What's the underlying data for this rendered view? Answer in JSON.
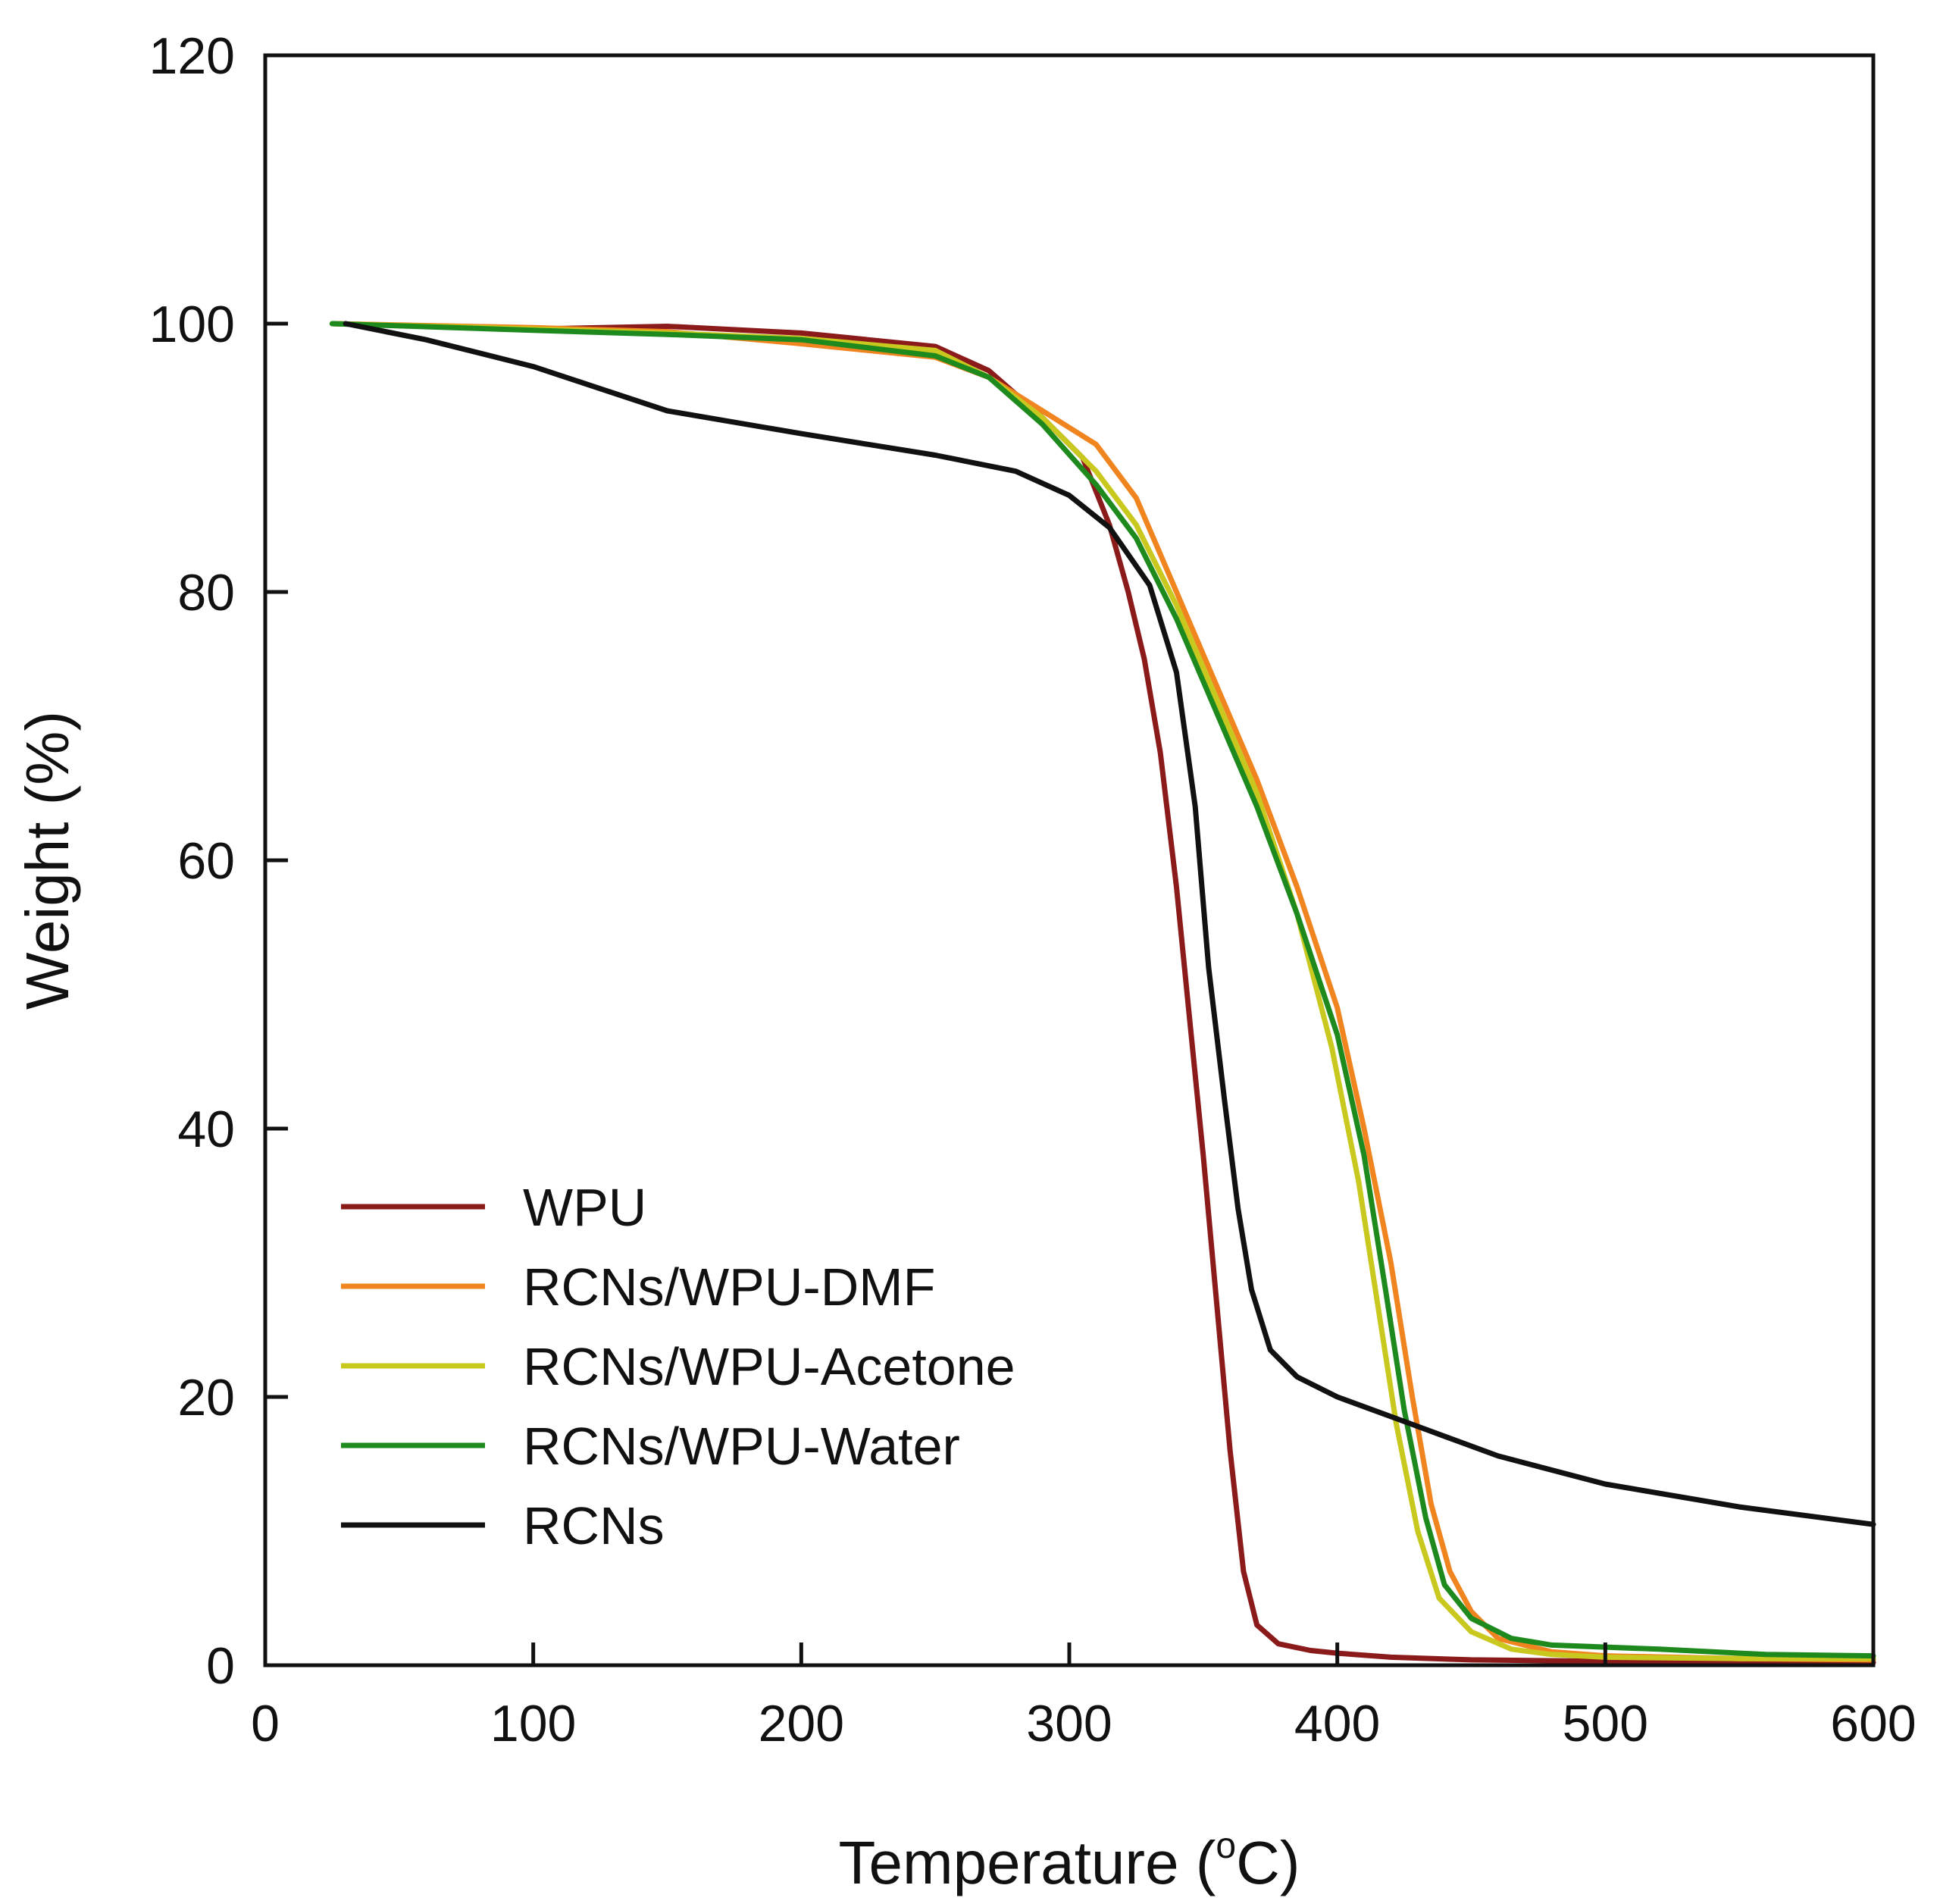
{
  "chart_data": {
    "type": "line",
    "title": "",
    "xlabel": "Temperature (°C)",
    "xlabel_main": "Temperature (",
    "xlabel_sup": "o",
    "xlabel_unit": "C)",
    "ylabel": "Weight (%)",
    "xlim": [
      0,
      600
    ],
    "ylim": [
      0,
      120
    ],
    "xticks": [
      "0",
      "100",
      "200",
      "300",
      "400",
      "500",
      "600"
    ],
    "yticks": [
      "0",
      "20",
      "40",
      "60",
      "80",
      "100",
      "120"
    ],
    "grid": false,
    "legend_position": "bottom-left",
    "series": [
      {
        "name": "WPU",
        "color": "#8B1A1A",
        "points": [
          [
            25,
            100
          ],
          [
            100,
            99.6
          ],
          [
            150,
            99.8
          ],
          [
            200,
            99.3
          ],
          [
            250,
            98.3
          ],
          [
            270,
            96.5
          ],
          [
            290,
            93
          ],
          [
            305,
            90
          ],
          [
            315,
            85
          ],
          [
            322,
            80
          ],
          [
            328,
            75
          ],
          [
            334,
            68
          ],
          [
            340,
            58
          ],
          [
            345,
            48
          ],
          [
            350,
            38
          ],
          [
            355,
            27
          ],
          [
            360,
            16
          ],
          [
            365,
            7
          ],
          [
            370,
            3
          ],
          [
            378,
            1.6
          ],
          [
            390,
            1.1
          ],
          [
            400,
            0.9
          ],
          [
            420,
            0.6
          ],
          [
            450,
            0.4
          ],
          [
            500,
            0.3
          ],
          [
            550,
            0.2
          ],
          [
            600,
            0.2
          ]
        ]
      },
      {
        "name": "RCNs/WPU-DMF",
        "color": "#F0841E",
        "points": [
          [
            25,
            100
          ],
          [
            100,
            99.7
          ],
          [
            150,
            99.4
          ],
          [
            200,
            98.5
          ],
          [
            250,
            97.5
          ],
          [
            270,
            96
          ],
          [
            290,
            93.5
          ],
          [
            310,
            91
          ],
          [
            325,
            87
          ],
          [
            340,
            80
          ],
          [
            355,
            73
          ],
          [
            370,
            66
          ],
          [
            385,
            58
          ],
          [
            400,
            49
          ],
          [
            410,
            40
          ],
          [
            420,
            30
          ],
          [
            428,
            20
          ],
          [
            435,
            12
          ],
          [
            442,
            7
          ],
          [
            450,
            4
          ],
          [
            460,
            2
          ],
          [
            480,
            1
          ],
          [
            500,
            0.7
          ],
          [
            550,
            0.5
          ],
          [
            600,
            0.4
          ]
        ]
      },
      {
        "name": "RCNs/WPU-Acetone",
        "color": "#C8C81E",
        "points": [
          [
            25,
            100
          ],
          [
            100,
            99.6
          ],
          [
            150,
            99.3
          ],
          [
            200,
            98.9
          ],
          [
            250,
            98
          ],
          [
            270,
            96
          ],
          [
            290,
            93
          ],
          [
            310,
            89
          ],
          [
            325,
            85
          ],
          [
            340,
            79
          ],
          [
            355,
            72
          ],
          [
            370,
            65
          ],
          [
            385,
            56
          ],
          [
            398,
            46
          ],
          [
            408,
            36
          ],
          [
            415,
            27
          ],
          [
            422,
            18
          ],
          [
            430,
            10
          ],
          [
            438,
            5
          ],
          [
            450,
            2.5
          ],
          [
            465,
            1.2
          ],
          [
            480,
            0.8
          ],
          [
            500,
            0.6
          ],
          [
            550,
            0.5
          ],
          [
            600,
            0.5
          ]
        ]
      },
      {
        "name": "RCNs/WPU-Water",
        "color": "#1E8A1E",
        "points": [
          [
            25,
            100
          ],
          [
            100,
            99.5
          ],
          [
            150,
            99.2
          ],
          [
            200,
            98.8
          ],
          [
            250,
            97.6
          ],
          [
            270,
            96
          ],
          [
            290,
            92.5
          ],
          [
            310,
            88
          ],
          [
            325,
            84
          ],
          [
            340,
            78
          ],
          [
            355,
            71
          ],
          [
            370,
            64
          ],
          [
            385,
            56
          ],
          [
            400,
            47
          ],
          [
            410,
            38
          ],
          [
            418,
            28
          ],
          [
            425,
            19
          ],
          [
            433,
            11
          ],
          [
            440,
            6
          ],
          [
            450,
            3.5
          ],
          [
            465,
            2
          ],
          [
            480,
            1.5
          ],
          [
            520,
            1.2
          ],
          [
            560,
            0.8
          ],
          [
            600,
            0.7
          ]
        ]
      },
      {
        "name": "RCNs",
        "color": "#111111",
        "points": [
          [
            30,
            100
          ],
          [
            60,
            98.8
          ],
          [
            100,
            96.8
          ],
          [
            150,
            93.5
          ],
          [
            200,
            91.8
          ],
          [
            250,
            90.2
          ],
          [
            280,
            89
          ],
          [
            300,
            87.2
          ],
          [
            315,
            84.8
          ],
          [
            330,
            80.5
          ],
          [
            340,
            74
          ],
          [
            347,
            64
          ],
          [
            352,
            52
          ],
          [
            358,
            42
          ],
          [
            363,
            34
          ],
          [
            368,
            28
          ],
          [
            375,
            23.5
          ],
          [
            385,
            21.5
          ],
          [
            400,
            20
          ],
          [
            430,
            17.8
          ],
          [
            460,
            15.6
          ],
          [
            500,
            13.5
          ],
          [
            550,
            11.8
          ],
          [
            600,
            10.5
          ]
        ]
      }
    ]
  }
}
